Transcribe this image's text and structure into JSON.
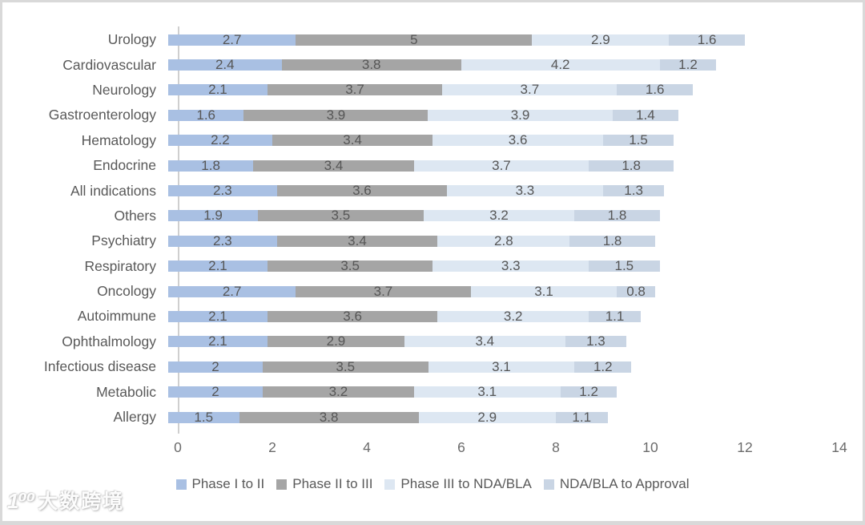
{
  "chart_data": {
    "type": "bar",
    "orientation": "horizontal",
    "stacked": true,
    "title": "",
    "xlabel": "",
    "ylabel": "",
    "xlim": [
      0,
      14
    ],
    "x_ticks": [
      0,
      2,
      4,
      6,
      8,
      10,
      12,
      14
    ],
    "grid": false,
    "legend_position": "bottom",
    "data_labels": true,
    "categories": [
      "Urology",
      "Cardiovascular",
      "Neurology",
      "Gastroenterology",
      "Hematology",
      "Endocrine",
      "All indications",
      "Others",
      "Psychiatry",
      "Respiratory",
      "Oncology",
      "Autoimmune",
      "Ophthalmology",
      "Infectious disease",
      "Metabolic",
      "Allergy"
    ],
    "series": [
      {
        "name": "Phase I to II",
        "color": "#a9c0e3",
        "values": [
          2.7,
          2.4,
          2.1,
          1.6,
          2.2,
          1.8,
          2.3,
          1.9,
          2.3,
          2.1,
          2.7,
          2.1,
          2.1,
          2,
          2,
          1.5
        ]
      },
      {
        "name": "Phase II to III",
        "color": "#a5a5a5",
        "values": [
          5,
          3.8,
          3.7,
          3.9,
          3.4,
          3.4,
          3.6,
          3.5,
          3.4,
          3.5,
          3.7,
          3.6,
          2.9,
          3.5,
          3.2,
          3.8
        ]
      },
      {
        "name": "Phase III to NDA/BLA",
        "color": "#dde7f2",
        "values": [
          2.9,
          4.2,
          3.7,
          3.9,
          3.6,
          3.7,
          3.3,
          3.2,
          2.8,
          3.3,
          3.1,
          3.2,
          3.4,
          3.1,
          3.1,
          2.9
        ]
      },
      {
        "name": "NDA/BLA to Approval",
        "color": "#c9d5e4",
        "values": [
          1.6,
          1.2,
          1.6,
          1.4,
          1.5,
          1.8,
          1.3,
          1.8,
          1.8,
          1.5,
          0.8,
          1.1,
          1.3,
          1.2,
          1.2,
          1.1
        ]
      }
    ]
  },
  "watermark": {
    "logo": "1⁰⁰",
    "text": "大数跨境"
  }
}
